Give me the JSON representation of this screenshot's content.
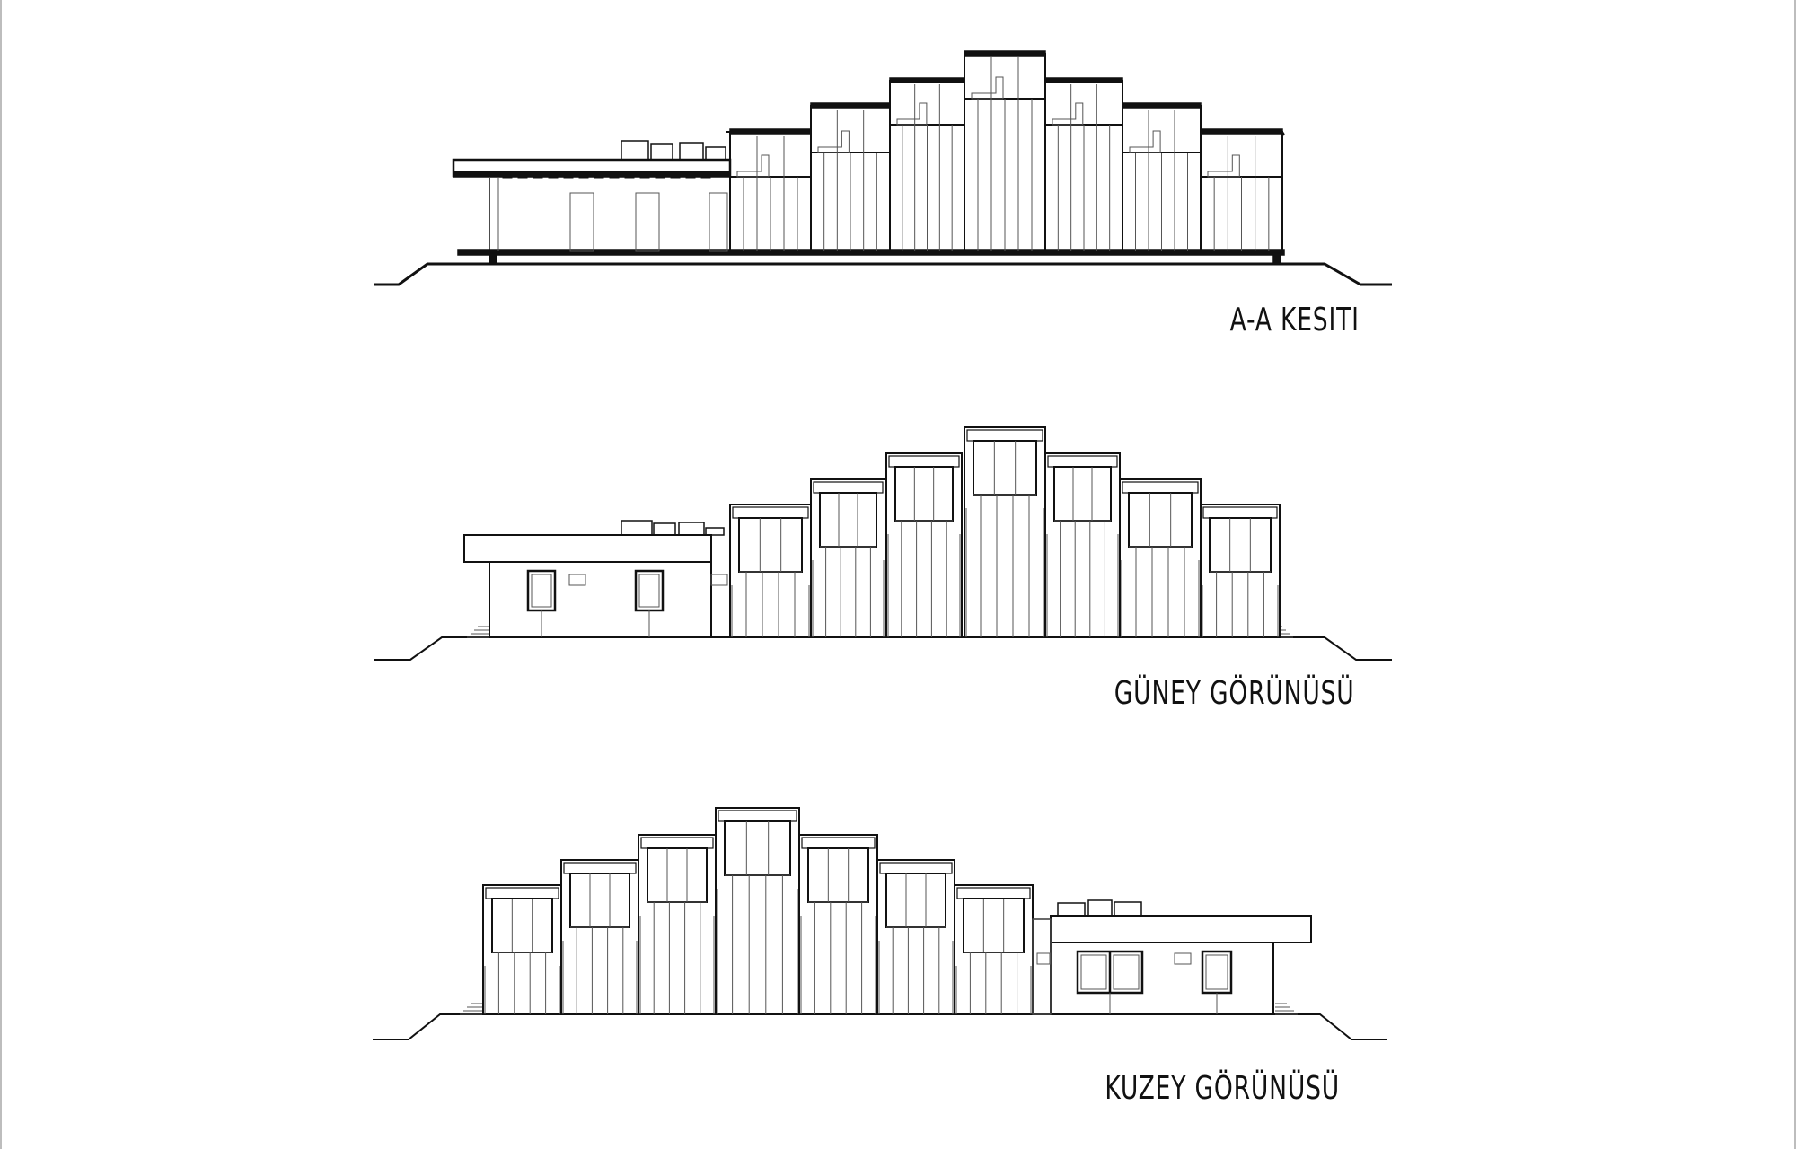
{
  "drawings": [
    {
      "id": "section",
      "label": "A-A KESITI"
    },
    {
      "id": "south",
      "label": "GÜNEY GÖRÜNÜSÜ"
    },
    {
      "id": "north",
      "label": "KUZEY GÖRÜNÜSÜ"
    }
  ],
  "colors": {
    "line": "#111111",
    "thin": "#555555",
    "background": "#ffffff"
  }
}
